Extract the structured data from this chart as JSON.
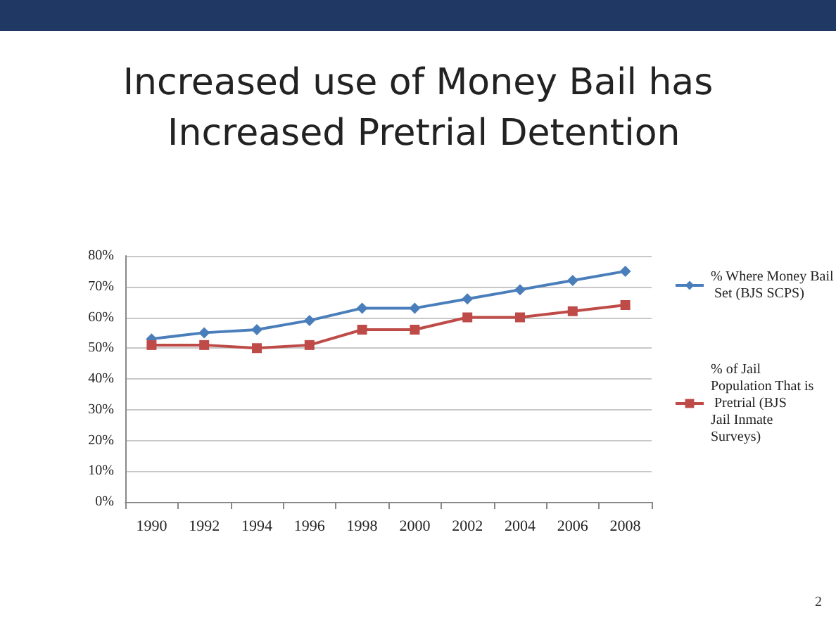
{
  "chart_data": {
    "type": "line",
    "title": "Increased use of Money Bail has Increased Pretrial Detention",
    "categories": [
      "1990",
      "1992",
      "1994",
      "1996",
      "1998",
      "2000",
      "2002",
      "2004",
      "2006",
      "2008"
    ],
    "series": [
      {
        "name": "% Where Money Bail Set (BJS SCPS)",
        "color": "#4a7ebb",
        "marker": "diamond",
        "values": [
          53,
          55,
          56,
          59,
          63,
          63,
          66,
          69,
          72,
          75
        ]
      },
      {
        "name": "% of Jail Population That is Pretrial (BJS Jail Inmate Surveys)",
        "color": "#be4b48",
        "marker": "square",
        "values": [
          51,
          51,
          50,
          51,
          56,
          56,
          60,
          60,
          62,
          64
        ]
      }
    ],
    "ylim": [
      0,
      80
    ],
    "yticks": [
      {
        "value": 0,
        "label": "0%"
      },
      {
        "value": 10,
        "label": "10%"
      },
      {
        "value": 20,
        "label": "20%"
      },
      {
        "value": 30,
        "label": "30%"
      },
      {
        "value": 40,
        "label": "40%"
      },
      {
        "value": 50,
        "label": "50%"
      },
      {
        "value": 60,
        "label": "60%"
      },
      {
        "value": 70,
        "label": "70%"
      },
      {
        "value": 80,
        "label": "80%"
      }
    ],
    "grid": "y",
    "legend": "right",
    "line_style": "solid",
    "annotations": [
      "2"
    ]
  }
}
